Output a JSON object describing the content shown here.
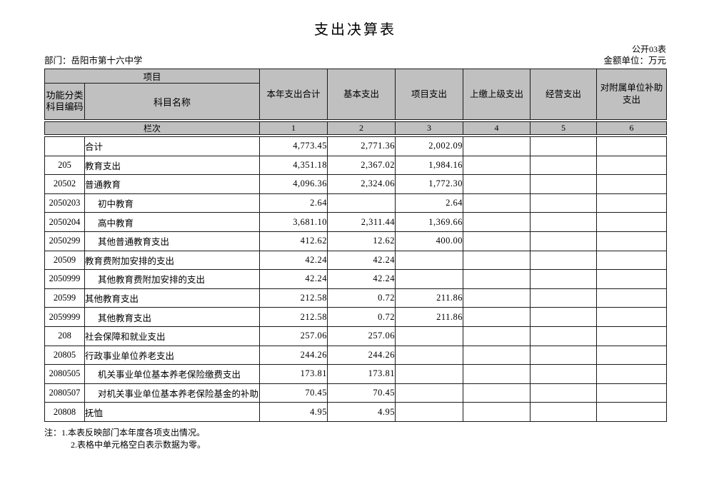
{
  "page": {
    "title": "支出决算表",
    "table_code": "公开03表",
    "department": "部门：岳阳市第十六中学",
    "unit": "金额单位：万元"
  },
  "colors": {
    "header_bg": "#c0c0c0",
    "border": "#1a1a1a"
  },
  "table": {
    "header": {
      "project_group": "项目",
      "code_label": "功能分类科目编码",
      "subject_label": "科目名称",
      "columns": [
        "本年支出合计",
        "基本支出",
        "项目支出",
        "上缴上级支出",
        "经营支出",
        "对附属单位补助支出"
      ],
      "lanci_label": "栏次",
      "column_numbers": [
        "1",
        "2",
        "3",
        "4",
        "5",
        "6"
      ]
    },
    "rows": [
      {
        "code": "",
        "name": "合计",
        "indent": false,
        "values": [
          "4,773.45",
          "2,771.36",
          "2,002.09",
          "",
          "",
          ""
        ]
      },
      {
        "code": "205",
        "name": "教育支出",
        "indent": false,
        "values": [
          "4,351.18",
          "2,367.02",
          "1,984.16",
          "",
          "",
          ""
        ]
      },
      {
        "code": "20502",
        "name": "普通教育",
        "indent": false,
        "values": [
          "4,096.36",
          "2,324.06",
          "1,772.30",
          "",
          "",
          ""
        ]
      },
      {
        "code": "2050203",
        "name": "初中教育",
        "indent": true,
        "values": [
          "2.64",
          "",
          "2.64",
          "",
          "",
          ""
        ]
      },
      {
        "code": "2050204",
        "name": "高中教育",
        "indent": true,
        "values": [
          "3,681.10",
          "2,311.44",
          "1,369.66",
          "",
          "",
          ""
        ]
      },
      {
        "code": "2050299",
        "name": "其他普通教育支出",
        "indent": true,
        "values": [
          "412.62",
          "12.62",
          "400.00",
          "",
          "",
          ""
        ]
      },
      {
        "code": "20509",
        "name": "教育费附加安排的支出",
        "indent": false,
        "values": [
          "42.24",
          "42.24",
          "",
          "",
          "",
          ""
        ]
      },
      {
        "code": "2050999",
        "name": "其他教育费附加安排的支出",
        "indent": true,
        "values": [
          "42.24",
          "42.24",
          "",
          "",
          "",
          ""
        ]
      },
      {
        "code": "20599",
        "name": "其他教育支出",
        "indent": false,
        "values": [
          "212.58",
          "0.72",
          "211.86",
          "",
          "",
          ""
        ]
      },
      {
        "code": "2059999",
        "name": "其他教育支出",
        "indent": true,
        "values": [
          "212.58",
          "0.72",
          "211.86",
          "",
          "",
          ""
        ]
      },
      {
        "code": "208",
        "name": "社会保障和就业支出",
        "indent": false,
        "values": [
          "257.06",
          "257.06",
          "",
          "",
          "",
          ""
        ]
      },
      {
        "code": "20805",
        "name": "行政事业单位养老支出",
        "indent": false,
        "values": [
          "244.26",
          "244.26",
          "",
          "",
          "",
          ""
        ]
      },
      {
        "code": "2080505",
        "name": "机关事业单位基本养老保险缴费支出",
        "indent": true,
        "values": [
          "173.81",
          "173.81",
          "",
          "",
          "",
          ""
        ]
      },
      {
        "code": "2080507",
        "name": "对机关事业单位基本养老保险基金的补助",
        "indent": true,
        "values": [
          "70.45",
          "70.45",
          "",
          "",
          "",
          ""
        ]
      },
      {
        "code": "20808",
        "name": "抚恤",
        "indent": false,
        "values": [
          "4.95",
          "4.95",
          "",
          "",
          "",
          ""
        ]
      }
    ]
  },
  "notes": [
    "注：1.本表反映部门本年度各项支出情况。",
    "2.表格中单元格空白表示数据为零。"
  ]
}
